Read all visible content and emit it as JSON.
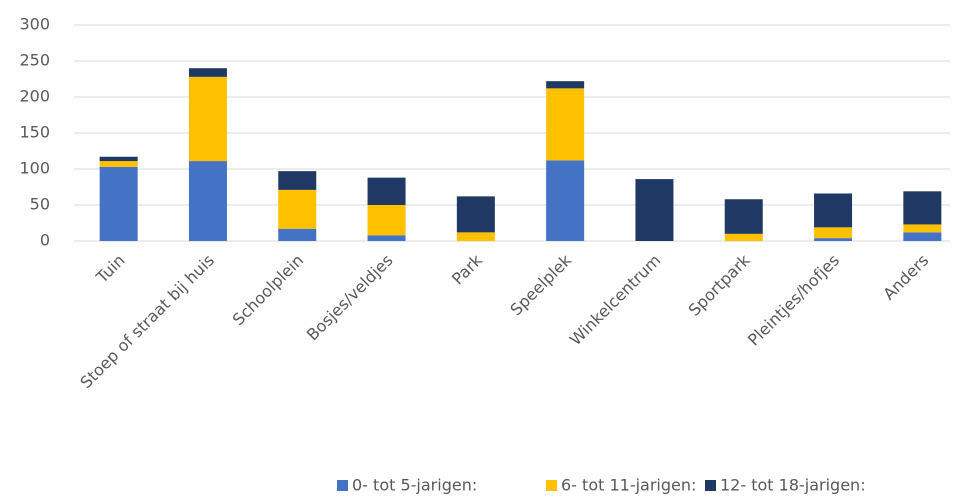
{
  "chart_data": {
    "type": "stacked_bar",
    "categories": [
      "Tuin",
      "Stoep of straat bij huis",
      "Schoolplein",
      "Bosjes/veldjes",
      "Park",
      "Speelplek",
      "Winkelcentrum",
      "Sportpark",
      "Pleintjes/hofjes",
      "Anders"
    ],
    "series": [
      {
        "name": "0- tot 5-jarigen:",
        "color": "#4472c4",
        "values": [
          103,
          111,
          17,
          8,
          0,
          112,
          0,
          0,
          4,
          12
        ]
      },
      {
        "name": "6- tot 11-jarigen:",
        "color": "#ffc000",
        "values": [
          8,
          117,
          54,
          42,
          12,
          100,
          0,
          10,
          15,
          11
        ]
      },
      {
        "name": "12- tot 18-jarigen:",
        "color": "#203864",
        "values": [
          6,
          12,
          26,
          38,
          50,
          10,
          86,
          48,
          47,
          46
        ]
      }
    ],
    "ylim": [
      0,
      300
    ],
    "yticks": [
      0,
      50,
      100,
      150,
      200,
      250,
      300
    ],
    "grid": true,
    "legend": "bottom"
  }
}
